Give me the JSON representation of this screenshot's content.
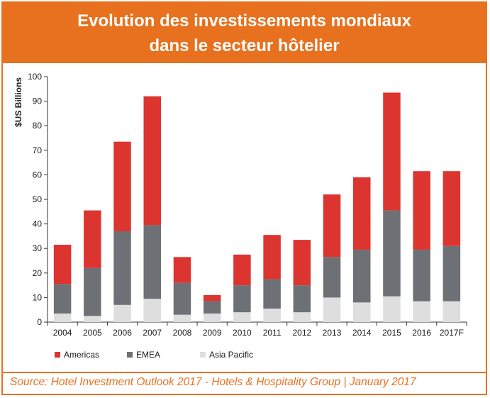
{
  "header": {
    "title_line1": "Evolution des investissements mondiaux",
    "title_line2": "dans le secteur hôtelier"
  },
  "footer": {
    "source": "Source: Hotel Investment Outlook 2017 - Hotels & Hospitality Group | January 2017"
  },
  "chart_data": {
    "type": "bar",
    "stacked": true,
    "ylabel": "$US Billions",
    "ylim": [
      0,
      100
    ],
    "yticks": [
      0,
      10,
      20,
      30,
      40,
      50,
      60,
      70,
      80,
      90,
      100
    ],
    "grid": false,
    "legend_position": "bottom-left",
    "categories": [
      "2004",
      "2005",
      "2006",
      "2007",
      "2008",
      "2009",
      "2010",
      "2011",
      "2012",
      "2013",
      "2014",
      "2015",
      "2016",
      "2017F"
    ],
    "series": [
      {
        "name": "Asia Pacific",
        "color": "#dedede",
        "values": [
          3.5,
          2.5,
          7,
          9.5,
          3,
          3.5,
          4,
          5.5,
          4,
          10,
          8,
          10.5,
          8.5,
          8.5
        ]
      },
      {
        "name": "EMEA",
        "color": "#6d7175",
        "values": [
          12,
          19.5,
          30,
          30,
          13,
          5,
          11,
          12,
          11,
          16.5,
          21.5,
          35,
          21,
          22.5
        ]
      },
      {
        "name": "Americas",
        "color": "#dc3530",
        "values": [
          16,
          23.5,
          36.5,
          52.5,
          10.5,
          2.5,
          12.5,
          18,
          18.5,
          25.5,
          29.5,
          48,
          32,
          30.5
        ]
      }
    ],
    "legend_order": [
      "Americas",
      "EMEA",
      "Asia Pacific"
    ]
  }
}
